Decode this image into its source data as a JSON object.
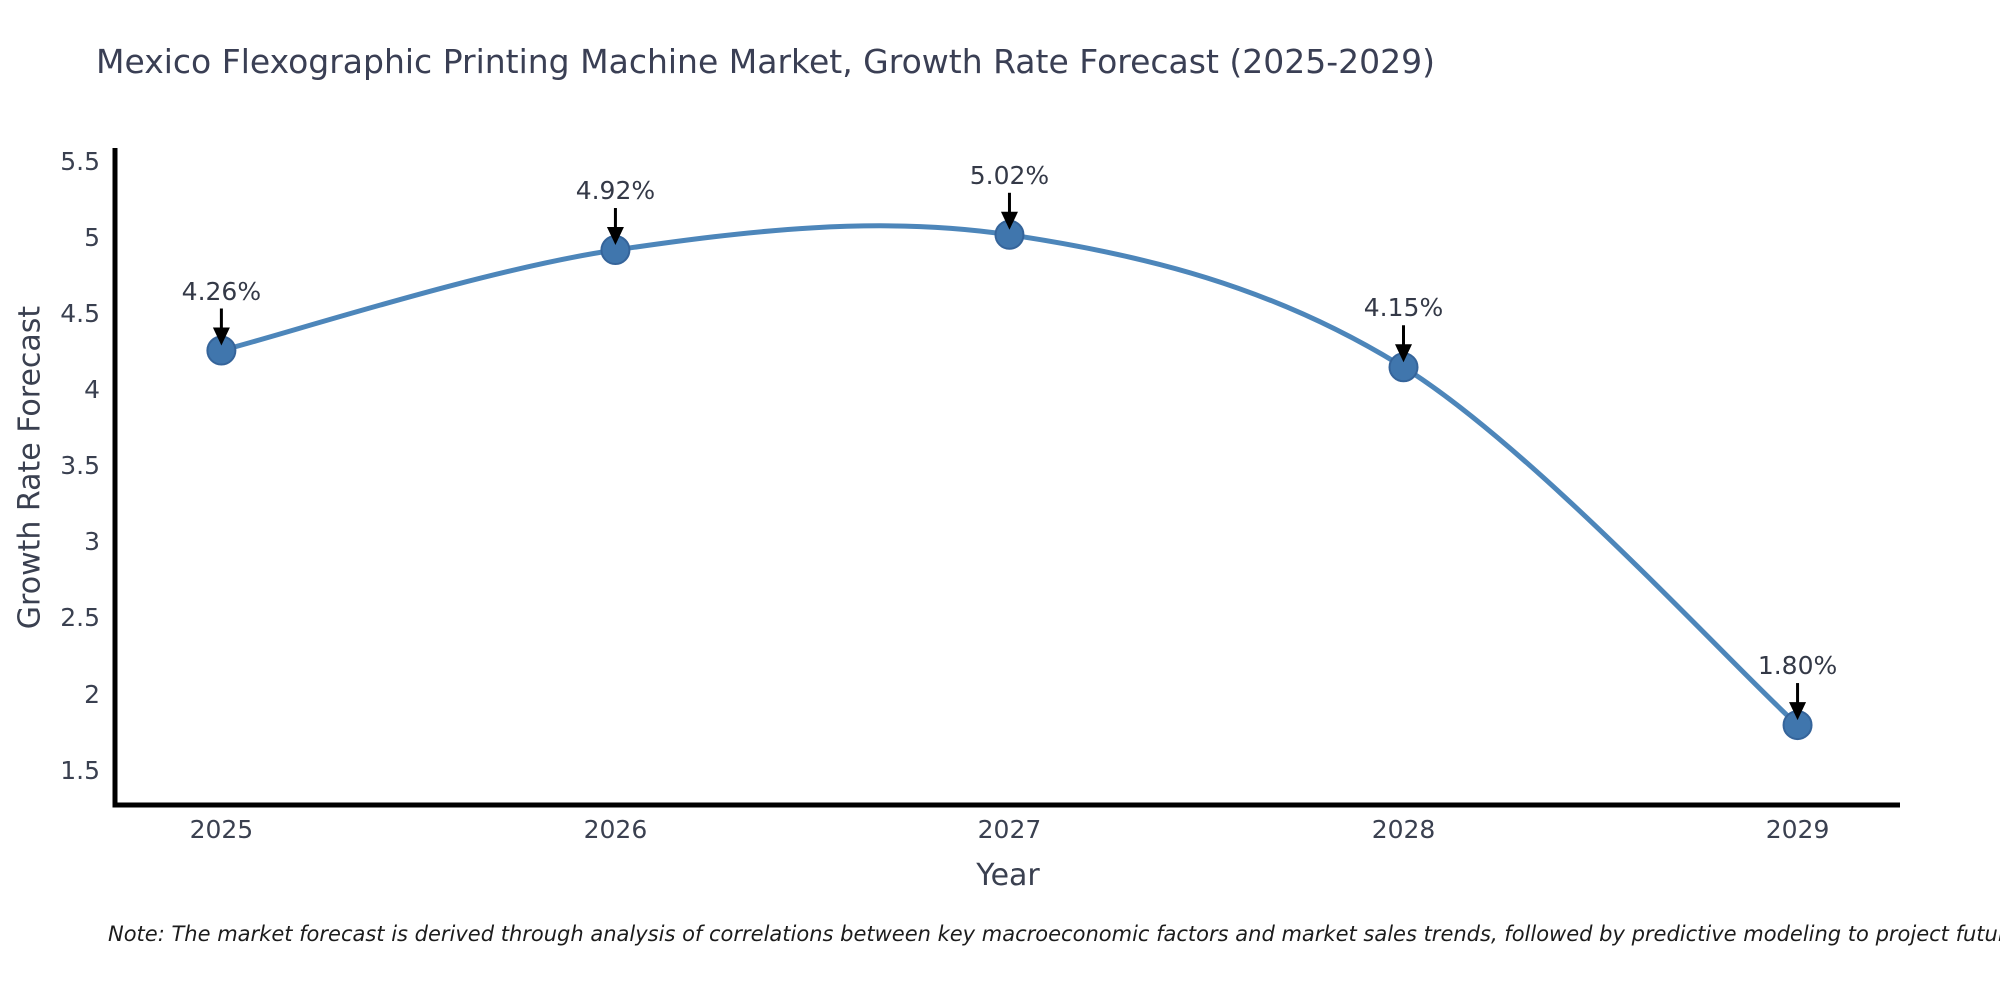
{
  "title": "Mexico Flexographic Printing Machine Market, Growth Rate Forecast (2025-2029)",
  "note": "Note: The market forecast is derived through analysis of correlations between key macroeconomic factors and market sales trends, followed by predictive modeling to project future sales",
  "chart_data": {
    "type": "line",
    "title": "Mexico Flexographic Printing Machine Market, Growth Rate Forecast (2025-2029)",
    "xlabel": "Year",
    "ylabel": "Growth Rate Forecast",
    "categories": [
      2025,
      2026,
      2027,
      2028,
      2029
    ],
    "values": [
      4.26,
      4.92,
      5.02,
      4.15,
      1.8
    ],
    "point_labels": [
      "4.26%",
      "4.92%",
      "5.02%",
      "4.15%",
      "1.80%"
    ],
    "y_ticks": [
      5.5,
      5,
      4.5,
      4,
      3.5,
      3,
      2.5,
      2,
      1.5
    ],
    "xlim": [
      2024.73,
      2029.26
    ],
    "ylim": [
      1.275,
      5.59
    ],
    "grid": false,
    "legend": "none",
    "smooth": true,
    "line_color": "#4d86ba",
    "marker_color": "#4076ad",
    "marker_edge_color": "#35649a",
    "axis_color": "#000000",
    "arrow_color": "#000000"
  }
}
